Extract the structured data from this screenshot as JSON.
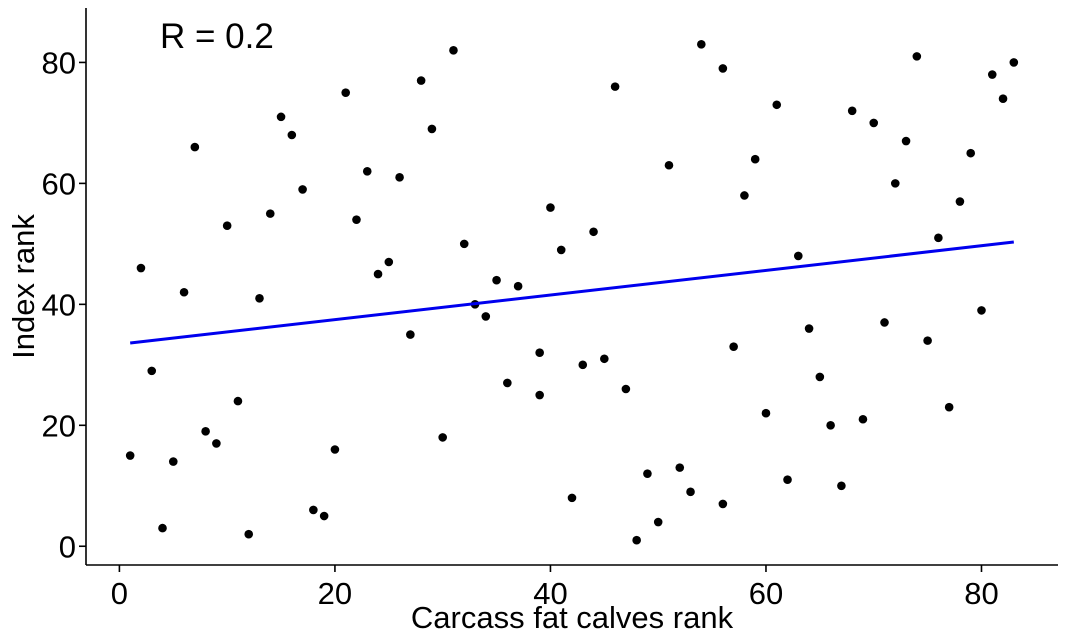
{
  "chart_data": {
    "type": "scatter",
    "title": "",
    "xlabel": "Carcass fat calves rank",
    "ylabel": "Index rank",
    "xlim": [
      -3.1,
      87.1
    ],
    "ylim": [
      -3.1,
      89.0
    ],
    "xticks": [
      0,
      20,
      40,
      60,
      80
    ],
    "yticks": [
      0,
      20,
      40,
      60,
      80
    ],
    "annotation": "R =  0.2",
    "grid": false,
    "legend": "none",
    "colors": {
      "points": "#000000",
      "fit_line": "#0000ee"
    },
    "fit_line": {
      "x": [
        1,
        83
      ],
      "y": [
        33.6,
        50.3
      ]
    },
    "points": [
      {
        "x": 1,
        "y": 15
      },
      {
        "x": 2,
        "y": 46
      },
      {
        "x": 3,
        "y": 29
      },
      {
        "x": 4,
        "y": 3
      },
      {
        "x": 5,
        "y": 14
      },
      {
        "x": 6,
        "y": 42
      },
      {
        "x": 7,
        "y": 66
      },
      {
        "x": 8,
        "y": 19
      },
      {
        "x": 9,
        "y": 17
      },
      {
        "x": 10,
        "y": 53
      },
      {
        "x": 11,
        "y": 24
      },
      {
        "x": 12,
        "y": 2
      },
      {
        "x": 13,
        "y": 41
      },
      {
        "x": 14,
        "y": 55
      },
      {
        "x": 15,
        "y": 71
      },
      {
        "x": 16,
        "y": 68
      },
      {
        "x": 17,
        "y": 59
      },
      {
        "x": 18,
        "y": 6
      },
      {
        "x": 19,
        "y": 5
      },
      {
        "x": 20,
        "y": 16
      },
      {
        "x": 21,
        "y": 75
      },
      {
        "x": 22,
        "y": 54
      },
      {
        "x": 23,
        "y": 62
      },
      {
        "x": 24,
        "y": 45
      },
      {
        "x": 25,
        "y": 47
      },
      {
        "x": 26,
        "y": 61
      },
      {
        "x": 27,
        "y": 35
      },
      {
        "x": 28,
        "y": 77
      },
      {
        "x": 29,
        "y": 69
      },
      {
        "x": 30,
        "y": 18
      },
      {
        "x": 31,
        "y": 82
      },
      {
        "x": 32,
        "y": 50
      },
      {
        "x": 33,
        "y": 40
      },
      {
        "x": 34,
        "y": 38
      },
      {
        "x": 35,
        "y": 44
      },
      {
        "x": 36,
        "y": 27
      },
      {
        "x": 37,
        "y": 43
      },
      {
        "x": 39,
        "y": 32
      },
      {
        "x": 39,
        "y": 25
      },
      {
        "x": 40,
        "y": 56
      },
      {
        "x": 41,
        "y": 49
      },
      {
        "x": 42,
        "y": 8
      },
      {
        "x": 43,
        "y": 30
      },
      {
        "x": 44,
        "y": 52
      },
      {
        "x": 45,
        "y": 31
      },
      {
        "x": 46,
        "y": 76
      },
      {
        "x": 47,
        "y": 26
      },
      {
        "x": 48,
        "y": 1
      },
      {
        "x": 49,
        "y": 12
      },
      {
        "x": 50,
        "y": 4
      },
      {
        "x": 51,
        "y": 63
      },
      {
        "x": 52,
        "y": 13
      },
      {
        "x": 53,
        "y": 9
      },
      {
        "x": 54,
        "y": 83
      },
      {
        "x": 56,
        "y": 79
      },
      {
        "x": 56,
        "y": 7
      },
      {
        "x": 57,
        "y": 33
      },
      {
        "x": 58,
        "y": 58
      },
      {
        "x": 59,
        "y": 64
      },
      {
        "x": 60,
        "y": 22
      },
      {
        "x": 61,
        "y": 73
      },
      {
        "x": 62,
        "y": 11
      },
      {
        "x": 63,
        "y": 48
      },
      {
        "x": 64,
        "y": 36
      },
      {
        "x": 65,
        "y": 28
      },
      {
        "x": 66,
        "y": 20
      },
      {
        "x": 67,
        "y": 10
      },
      {
        "x": 68,
        "y": 72
      },
      {
        "x": 69,
        "y": 21
      },
      {
        "x": 70,
        "y": 70
      },
      {
        "x": 71,
        "y": 37
      },
      {
        "x": 72,
        "y": 60
      },
      {
        "x": 73,
        "y": 67
      },
      {
        "x": 74,
        "y": 81
      },
      {
        "x": 75,
        "y": 34
      },
      {
        "x": 76,
        "y": 51
      },
      {
        "x": 77,
        "y": 23
      },
      {
        "x": 78,
        "y": 57
      },
      {
        "x": 79,
        "y": 65
      },
      {
        "x": 80,
        "y": 39
      },
      {
        "x": 81,
        "y": 78
      },
      {
        "x": 82,
        "y": 74
      },
      {
        "x": 83,
        "y": 80
      }
    ]
  }
}
